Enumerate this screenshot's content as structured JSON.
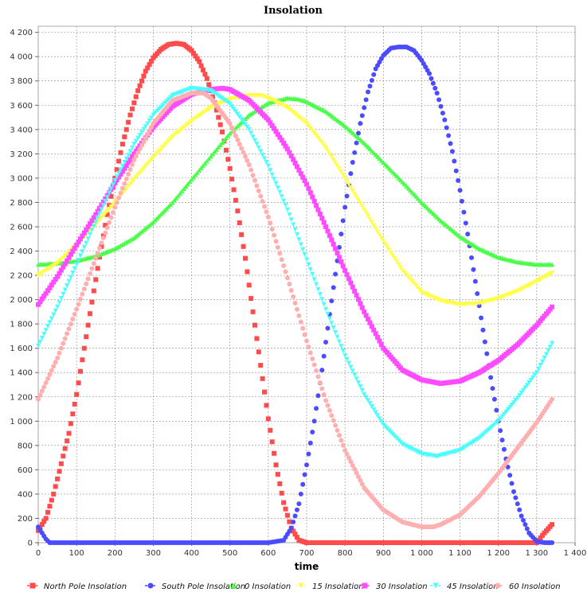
{
  "chart_data": {
    "type": "scatter",
    "title": "Insolation",
    "xlabel": "time",
    "ylabel": "",
    "xlim": [
      0,
      1400
    ],
    "ylim": [
      0,
      4250
    ],
    "x_ticks": [
      0,
      100,
      200,
      300,
      400,
      500,
      600,
      700,
      800,
      900,
      1000,
      1100,
      1200,
      1300,
      1400
    ],
    "x_tick_labels": [
      "0",
      "100",
      "200",
      "300",
      "400",
      "500",
      "600",
      "700",
      "800",
      "900",
      "1 000",
      "1 100",
      "1 200",
      "1 300",
      "1 400"
    ],
    "y_ticks": [
      0,
      200,
      400,
      600,
      800,
      1000,
      1200,
      1400,
      1600,
      1800,
      2000,
      2200,
      2400,
      2600,
      2800,
      3000,
      3200,
      3400,
      3600,
      3800,
      4000,
      4200
    ],
    "y_tick_labels": [
      "0",
      "200",
      "400",
      "600",
      "800",
      "1 000",
      "1 200",
      "1 400",
      "1 600",
      "1 800",
      "2 000",
      "2 200",
      "2 400",
      "2 600",
      "2 800",
      "3 000",
      "3 200",
      "3 400",
      "3 600",
      "3 800",
      "4 000",
      "4 200"
    ],
    "grid": true,
    "legend_position": "bottom",
    "series": [
      {
        "name": "North Pole Insolation",
        "color": "#ff4b4b",
        "marker": "square",
        "x": [
          0,
          20,
          40,
          60,
          80,
          100,
          120,
          140,
          160,
          180,
          200,
          220,
          240,
          260,
          280,
          300,
          320,
          340,
          360,
          380,
          400,
          420,
          440,
          460,
          480,
          500,
          520,
          540,
          560,
          580,
          600,
          620,
          640,
          660,
          680,
          700,
          720,
          760,
          800,
          850,
          900,
          950,
          1000,
          1050,
          1100,
          1150,
          1200,
          1250,
          1300,
          1320,
          1340
        ],
        "y": [
          100,
          200,
          400,
          650,
          900,
          1220,
          1600,
          1980,
          2350,
          2700,
          3000,
          3280,
          3520,
          3720,
          3880,
          3990,
          4060,
          4100,
          4110,
          4100,
          4050,
          3960,
          3820,
          3620,
          3380,
          3080,
          2730,
          2340,
          1900,
          1460,
          1020,
          640,
          330,
          120,
          20,
          0,
          0,
          0,
          0,
          0,
          0,
          0,
          0,
          0,
          0,
          0,
          0,
          0,
          0,
          80,
          150
        ]
      },
      {
        "name": "South Pole Insolation",
        "color": "#4b4bff",
        "marker": "circle",
        "x": [
          0,
          10,
          20,
          30,
          60,
          100,
          150,
          200,
          250,
          300,
          350,
          400,
          450,
          500,
          550,
          600,
          640,
          660,
          680,
          700,
          720,
          740,
          760,
          780,
          800,
          820,
          840,
          860,
          880,
          900,
          920,
          940,
          960,
          980,
          1000,
          1020,
          1040,
          1060,
          1080,
          1100,
          1120,
          1140,
          1160,
          1180,
          1200,
          1220,
          1240,
          1260,
          1280,
          1300,
          1320,
          1340
        ],
        "y": [
          130,
          80,
          30,
          0,
          0,
          0,
          0,
          0,
          0,
          0,
          0,
          0,
          0,
          0,
          0,
          0,
          20,
          120,
          320,
          640,
          1000,
          1420,
          1880,
          2320,
          2760,
          3130,
          3450,
          3710,
          3900,
          4010,
          4070,
          4080,
          4080,
          4050,
          3970,
          3860,
          3700,
          3480,
          3220,
          2900,
          2540,
          2150,
          1750,
          1360,
          1000,
          690,
          420,
          220,
          80,
          10,
          0,
          0
        ]
      },
      {
        "name": "0 Insolation",
        "color": "#4bff4b",
        "marker": "triangle-up",
        "x": [
          0,
          50,
          100,
          150,
          200,
          250,
          300,
          350,
          400,
          450,
          500,
          550,
          600,
          650,
          680,
          700,
          750,
          800,
          850,
          900,
          950,
          1000,
          1050,
          1100,
          1150,
          1200,
          1250,
          1300,
          1340
        ],
        "y": [
          2290,
          2300,
          2320,
          2360,
          2420,
          2510,
          2640,
          2800,
          2990,
          3180,
          3370,
          3520,
          3620,
          3660,
          3650,
          3630,
          3550,
          3430,
          3290,
          3130,
          2970,
          2800,
          2650,
          2520,
          2420,
          2350,
          2310,
          2290,
          2290
        ]
      },
      {
        "name": "15 Insolation",
        "color": "#ffff4b",
        "marker": "triangle-down",
        "x": [
          0,
          50,
          100,
          150,
          200,
          250,
          300,
          350,
          400,
          450,
          500,
          550,
          580,
          600,
          650,
          700,
          750,
          800,
          850,
          900,
          950,
          1000,
          1050,
          1100,
          1150,
          1200,
          1250,
          1300,
          1340
        ],
        "y": [
          2200,
          2300,
          2450,
          2620,
          2800,
          2990,
          3170,
          3340,
          3470,
          3580,
          3650,
          3680,
          3680,
          3660,
          3580,
          3450,
          3250,
          3000,
          2740,
          2480,
          2240,
          2060,
          1990,
          1960,
          1970,
          2010,
          2070,
          2150,
          2220
        ]
      },
      {
        "name": "30 Insolation",
        "color": "#ff4bff",
        "marker": "square",
        "x": [
          0,
          50,
          100,
          150,
          200,
          250,
          300,
          350,
          400,
          450,
          480,
          500,
          550,
          600,
          650,
          700,
          750,
          800,
          850,
          900,
          950,
          1000,
          1050,
          1100,
          1150,
          1200,
          1250,
          1300,
          1340
        ],
        "y": [
          1960,
          2190,
          2450,
          2700,
          2960,
          3200,
          3420,
          3590,
          3690,
          3730,
          3740,
          3730,
          3640,
          3480,
          3240,
          2950,
          2600,
          2240,
          1900,
          1600,
          1420,
          1340,
          1310,
          1330,
          1400,
          1500,
          1630,
          1790,
          1940
        ]
      },
      {
        "name": "45 Insolation",
        "color": "#4bffff",
        "marker": "triangle-down",
        "x": [
          0,
          50,
          100,
          150,
          200,
          250,
          300,
          350,
          400,
          450,
          500,
          550,
          600,
          650,
          700,
          750,
          800,
          850,
          900,
          950,
          1000,
          1040,
          1100,
          1150,
          1200,
          1250,
          1300,
          1340
        ],
        "y": [
          1620,
          1940,
          2290,
          2640,
          2980,
          3280,
          3520,
          3680,
          3740,
          3720,
          3610,
          3400,
          3100,
          2740,
          2330,
          1920,
          1540,
          1220,
          970,
          810,
          730,
          710,
          760,
          860,
          1000,
          1190,
          1400,
          1640
        ]
      },
      {
        "name": "60 Insolation",
        "color": "#ffafaf",
        "marker": "circle",
        "x": [
          0,
          50,
          100,
          150,
          200,
          250,
          300,
          350,
          400,
          430,
          450,
          500,
          550,
          600,
          650,
          700,
          750,
          800,
          850,
          900,
          950,
          1000,
          1030,
          1050,
          1100,
          1150,
          1200,
          1250,
          1300,
          1340
        ],
        "y": [
          1180,
          1520,
          1920,
          2340,
          2760,
          3150,
          3450,
          3640,
          3700,
          3700,
          3660,
          3450,
          3110,
          2680,
          2180,
          1660,
          1170,
          760,
          450,
          270,
          170,
          130,
          130,
          150,
          230,
          380,
          570,
          780,
          990,
          1180
        ]
      }
    ]
  }
}
